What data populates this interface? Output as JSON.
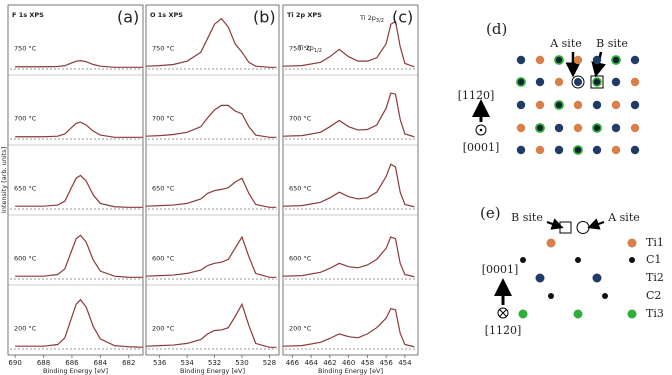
{
  "chart_data": [
    {
      "type": "line",
      "title": "F 1s XPS",
      "panel_label": "(a)",
      "xlabel": "Binding Energy [eV]",
      "ylabel": "Intensity [arb. units]",
      "x": [
        690,
        689,
        688,
        687,
        686.5,
        686,
        685.7,
        685.4,
        685,
        684.5,
        684,
        683,
        682,
        681
      ],
      "xlim": [
        690.5,
        681
      ],
      "xticks": [
        690,
        688,
        686,
        684,
        682
      ],
      "ylim": [
        0,
        100
      ],
      "series": [
        {
          "name": "750 °C",
          "color": "#8b3a3a",
          "values": [
            4,
            4,
            4,
            4.5,
            6,
            11,
            14,
            15,
            13,
            8,
            5,
            3,
            3,
            3
          ]
        },
        {
          "name": "700 °C",
          "color": "#8b3a3a",
          "values": [
            4,
            4,
            4,
            5,
            9,
            21,
            28,
            30,
            25,
            14,
            7,
            3,
            3,
            3
          ]
        },
        {
          "name": "650 °C",
          "color": "#8b3a3a",
          "values": [
            5,
            5,
            5,
            7,
            14,
            40,
            55,
            60,
            50,
            25,
            10,
            4,
            3,
            3
          ]
        },
        {
          "name": "600 °C",
          "color": "#8b3a3a",
          "values": [
            5,
            5,
            5,
            8,
            18,
            52,
            72,
            78,
            66,
            34,
            14,
            5,
            3,
            3
          ]
        },
        {
          "name": "200 °C",
          "color": "#8b3a3a",
          "values": [
            5,
            5,
            5,
            8,
            20,
            58,
            80,
            88,
            75,
            40,
            18,
            6,
            4,
            3
          ]
        }
      ]
    },
    {
      "type": "line",
      "title": "O 1s XPS",
      "panel_label": "(b)",
      "xlabel": "Binding Energy [eV]",
      "x": [
        537,
        536,
        535,
        534,
        533,
        532.5,
        532,
        531.5,
        531,
        530.5,
        530,
        529.5,
        529,
        528,
        527.5
      ],
      "xlim": [
        537,
        527.3
      ],
      "xticks": [
        536,
        534,
        532,
        530,
        528
      ],
      "ylim": [
        0,
        100
      ],
      "series": [
        {
          "name": "750 °C",
          "color": "#8b3a3a",
          "values": [
            5,
            6,
            8,
            14,
            30,
            55,
            80,
            90,
            75,
            45,
            30,
            12,
            5,
            3,
            3
          ]
        },
        {
          "name": "700 °C",
          "color": "#8b3a3a",
          "values": [
            5,
            6,
            8,
            12,
            22,
            38,
            52,
            60,
            60,
            50,
            45,
            22,
            7,
            3,
            3
          ]
        },
        {
          "name": "650 °C",
          "color": "#8b3a3a",
          "values": [
            5,
            6,
            7,
            10,
            18,
            28,
            33,
            35,
            38,
            48,
            55,
            28,
            8,
            3,
            3
          ]
        },
        {
          "name": "600 °C",
          "color": "#8b3a3a",
          "values": [
            5,
            6,
            7,
            10,
            16,
            24,
            28,
            30,
            35,
            55,
            75,
            40,
            10,
            3,
            3
          ]
        },
        {
          "name": "200 °C",
          "color": "#8b3a3a",
          "values": [
            5,
            6,
            7,
            10,
            17,
            27,
            33,
            34,
            38,
            58,
            80,
            42,
            10,
            3,
            3
          ]
        }
      ]
    },
    {
      "type": "line",
      "title": "Ti 2p XPS",
      "panel_label": "(c)",
      "xlabel": "Binding Energy [eV]",
      "x": [
        467,
        465,
        463,
        462,
        461,
        460,
        459,
        458,
        457,
        456,
        455.5,
        455,
        454.5,
        454,
        453
      ],
      "xlim": [
        467,
        452.6
      ],
      "xticks": [
        466,
        464,
        462,
        460,
        458,
        456,
        454
      ],
      "ylim": [
        0,
        100
      ],
      "annotations": [
        {
          "text": "Ti 2p",
          "sub": "1/2"
        },
        {
          "text": "Ti 2p",
          "sub": "3/2"
        }
      ],
      "series": [
        {
          "name": "750 °C",
          "color": "#8b3a3a",
          "values": [
            5,
            6,
            12,
            22,
            35,
            22,
            14,
            14,
            20,
            45,
            80,
            85,
            40,
            10,
            4
          ]
        },
        {
          "name": "700 °C",
          "color": "#8b3a3a",
          "values": [
            5,
            6,
            12,
            22,
            33,
            22,
            16,
            17,
            25,
            55,
            82,
            80,
            35,
            9,
            4
          ]
        },
        {
          "name": "650 °C",
          "color": "#8b3a3a",
          "values": [
            5,
            6,
            12,
            20,
            30,
            22,
            18,
            20,
            30,
            58,
            80,
            75,
            30,
            8,
            4
          ]
        },
        {
          "name": "600 °C",
          "color": "#8b3a3a",
          "values": [
            5,
            6,
            12,
            19,
            28,
            22,
            20,
            25,
            35,
            55,
            75,
            72,
            28,
            8,
            4
          ]
        },
        {
          "name": "200 °C",
          "color": "#8b3a3a",
          "values": [
            5,
            6,
            12,
            19,
            27,
            22,
            20,
            27,
            38,
            55,
            72,
            70,
            28,
            8,
            4
          ]
        }
      ]
    }
  ],
  "diagram_d": {
    "label": "(d)",
    "a_site": "A site",
    "b_site": "B site",
    "axis_up": "[112̄0]",
    "axis_out": "[0001]"
  },
  "diagram_e": {
    "label": "(e)",
    "b_site": "B site",
    "a_site": "A site",
    "axis_up": "[0001]",
    "axis_in": "[112̄0]",
    "layers": [
      "Ti1",
      "C1",
      "Ti2",
      "C2",
      "Ti3"
    ]
  }
}
